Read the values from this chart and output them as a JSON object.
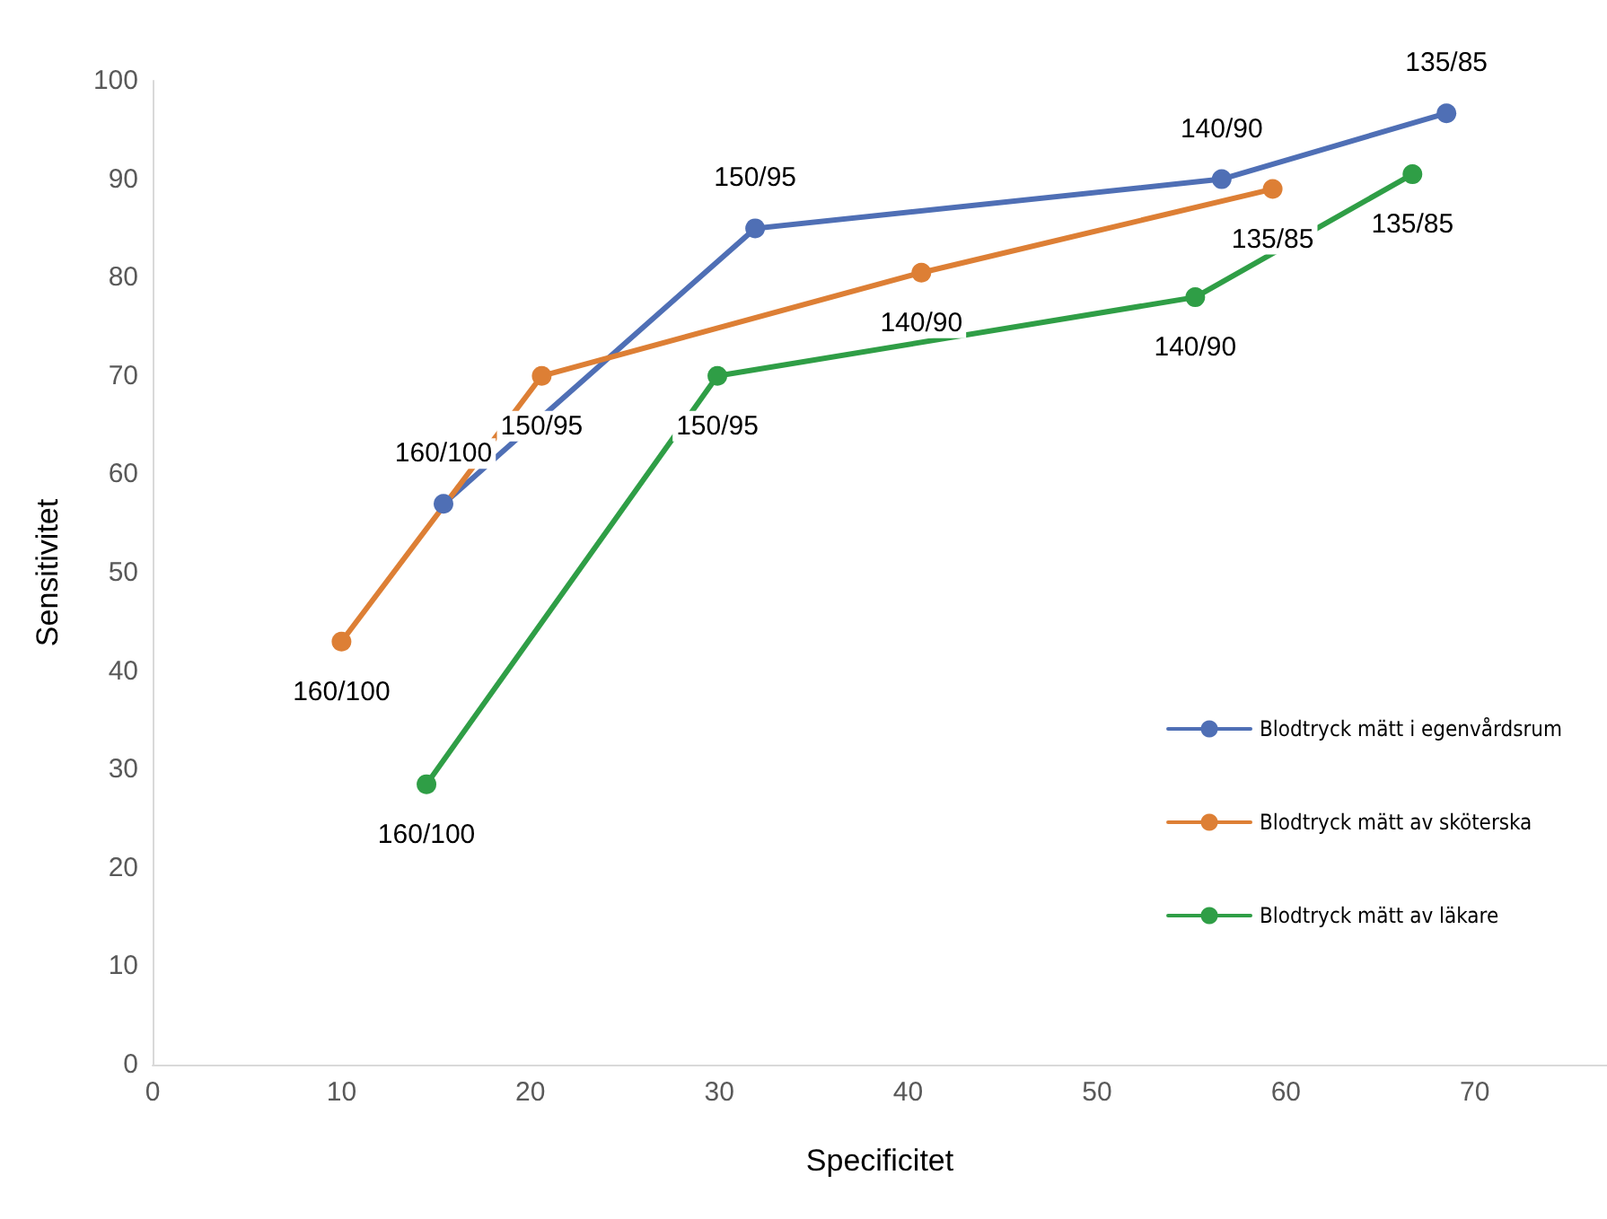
{
  "chart_data": {
    "type": "line",
    "xlabel": "Specificitet",
    "ylabel": "Sensitivitet",
    "xlim": [
      0,
      77
    ],
    "xticks": [
      0,
      10,
      20,
      30,
      40,
      50,
      60,
      70
    ],
    "ylim": [
      0,
      100
    ],
    "yticks": [
      0,
      10,
      20,
      30,
      40,
      50,
      60,
      70,
      80,
      90,
      100
    ],
    "grid": false,
    "legend": "right",
    "marker": "circle",
    "line_style": "solid",
    "series": [
      {
        "name": "Blodtryck mätt i egenvårdsrum",
        "color": "#4f6fb5",
        "x": [
          15.4,
          31.9,
          56.6,
          68.5
        ],
        "values": [
          57,
          85,
          90,
          96.7
        ],
        "value_labels": [
          "160/100",
          "150/95",
          "140/90",
          "135/85"
        ]
      },
      {
        "name": "Blodtryck mätt av sköterska",
        "color": "#dd7f35",
        "x": [
          10,
          20.6,
          40.7,
          59.3
        ],
        "values": [
          43,
          70,
          80.5,
          89
        ],
        "value_labels": [
          "160/100",
          "150/95",
          "140/90",
          "135/85"
        ]
      },
      {
        "name": "Blodtryck mätt av läkare",
        "color": "#2f9e46",
        "x": [
          14.5,
          29.9,
          55.2,
          66.7
        ],
        "values": [
          28.5,
          70,
          78,
          90.5
        ],
        "value_labels": [
          "160/100",
          "150/95",
          "140/90",
          "135/85"
        ]
      }
    ]
  }
}
